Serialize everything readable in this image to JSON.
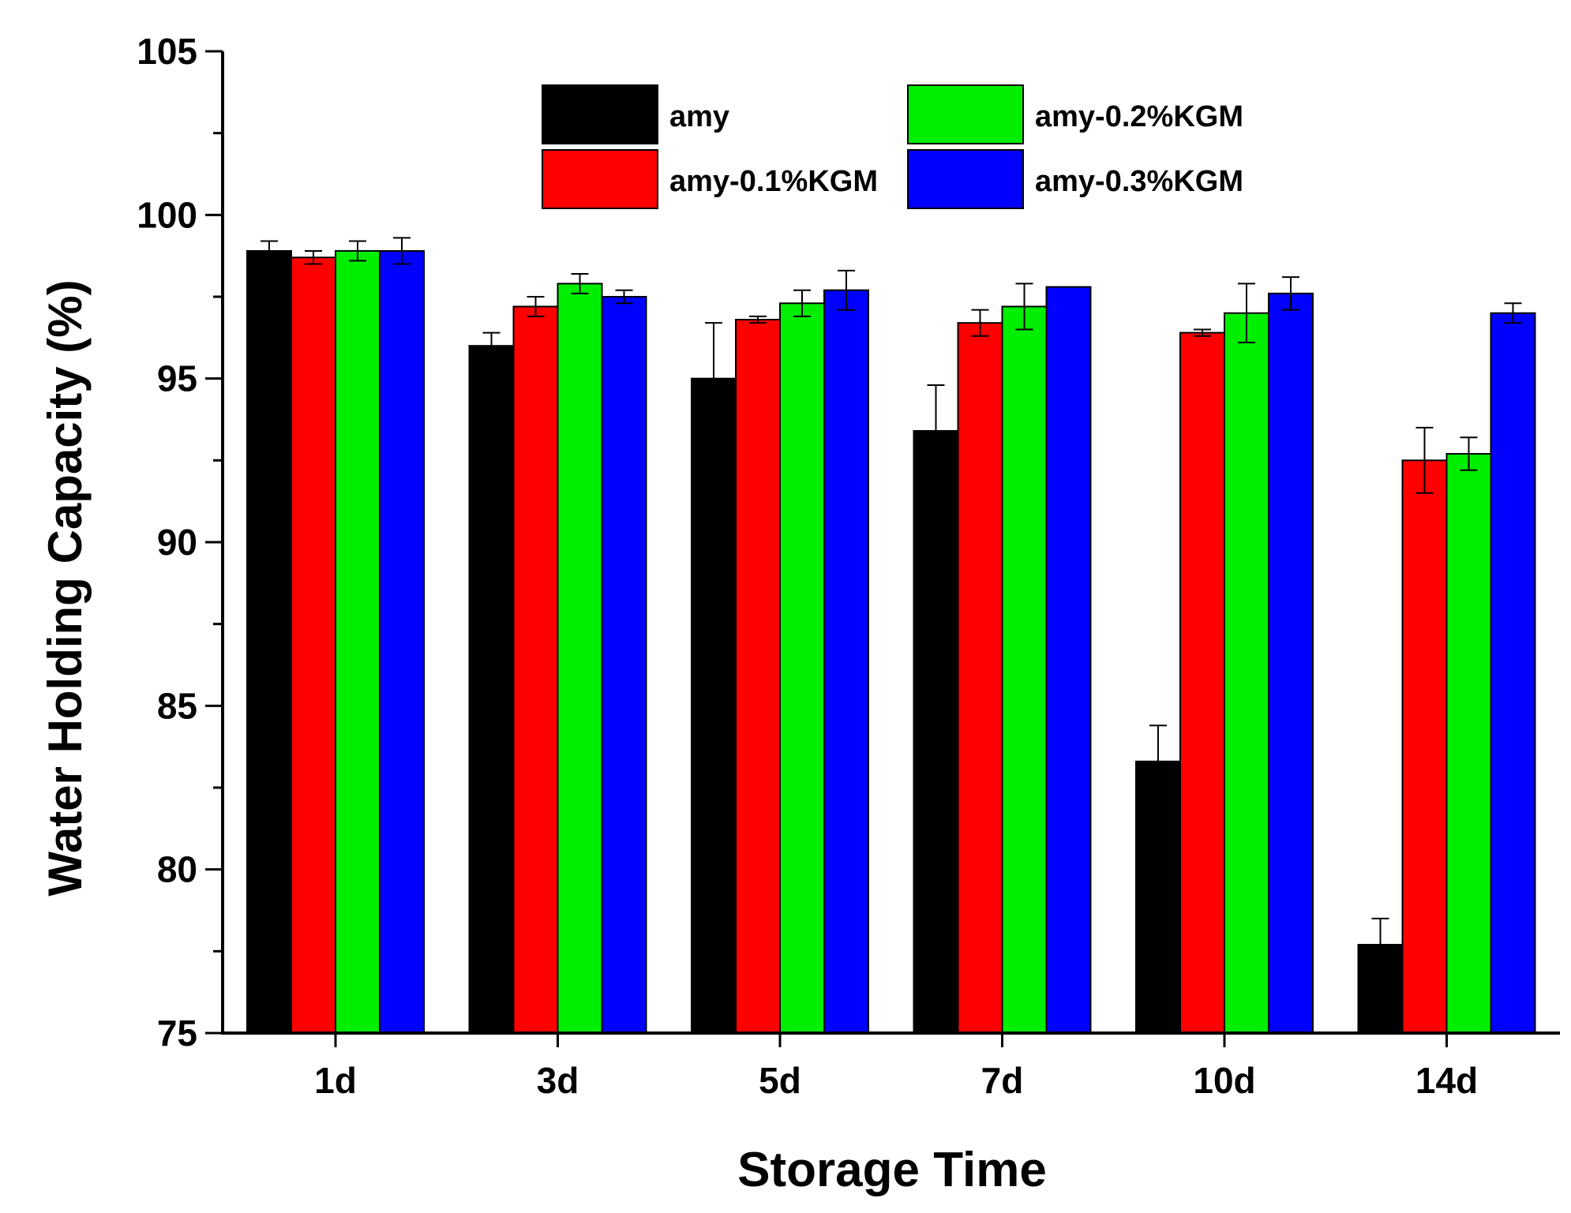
{
  "chart_data": {
    "type": "bar",
    "title": "",
    "xlabel": "Storage Time",
    "ylabel": "Water Holding Capacity (%)",
    "ylim": [
      75,
      105
    ],
    "yticks": [
      75,
      80,
      85,
      90,
      95,
      100,
      105
    ],
    "ytick_labels": [
      "75",
      "80",
      "85",
      "90",
      "95",
      "100",
      "105"
    ],
    "categories": [
      "1d",
      "3d",
      "5d",
      "7d",
      "10d",
      "14d"
    ],
    "series": [
      {
        "name": "amy",
        "color": "#000000",
        "values": [
          98.9,
          96.0,
          95.0,
          93.4,
          83.3,
          77.7
        ],
        "errors": [
          0.3,
          0.4,
          1.7,
          1.4,
          1.1,
          0.8
        ]
      },
      {
        "name": "amy-0.1%KGM",
        "color": "#ff0000",
        "values": [
          98.7,
          97.2,
          96.8,
          96.7,
          96.4,
          92.5
        ],
        "errors": [
          0.2,
          0.3,
          0.1,
          0.4,
          0.1,
          1.0
        ]
      },
      {
        "name": "amy-0.2%KGM",
        "color": "#00ee00",
        "values": [
          98.9,
          97.9,
          97.3,
          97.2,
          97.0,
          92.7
        ],
        "errors": [
          0.3,
          0.3,
          0.4,
          0.7,
          0.9,
          0.5
        ]
      },
      {
        "name": "amy-0.3%KGM",
        "color": "#0000ff",
        "values": [
          98.9,
          97.5,
          97.7,
          97.8,
          97.6,
          97.0
        ],
        "errors": [
          0.4,
          0.2,
          0.6,
          0.0,
          0.5,
          0.3
        ]
      }
    ],
    "legend": {
      "position": "top-center",
      "columns": 2
    },
    "grid": false
  }
}
